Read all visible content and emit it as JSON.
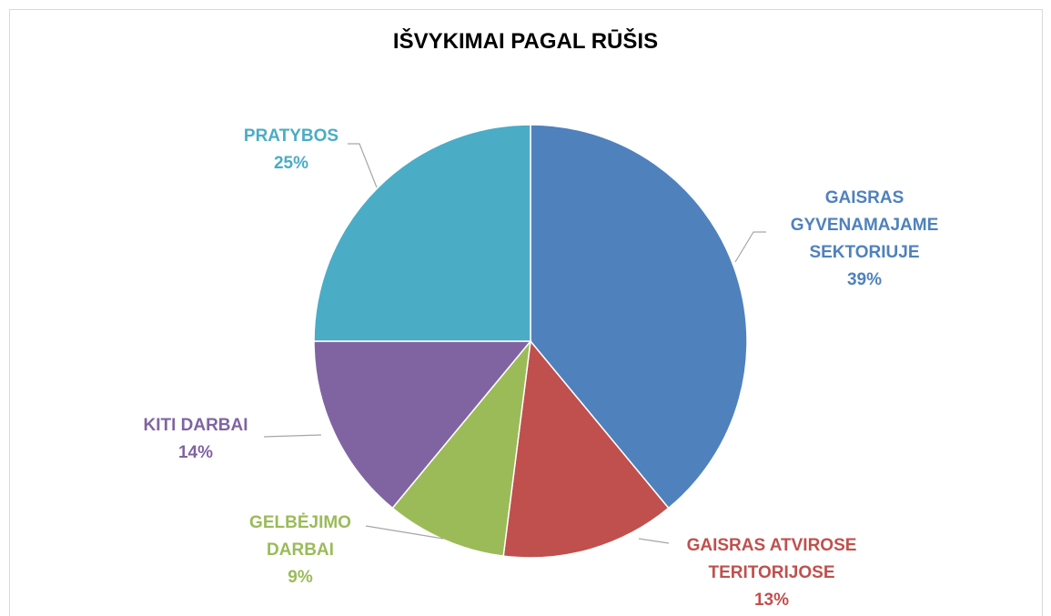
{
  "chart_data": {
    "type": "pie",
    "title": "IŠVYKIMAI PAGAL RŪŠIS",
    "categories": [
      "GAISRAS GYVENAMAJAME SEKTORIUJE",
      "GAISRAS ATVIROSE TERITORIJOSE",
      "GELBĖJIMO DARBAI",
      "KITI DARBAI",
      "PRATYBOS"
    ],
    "values": [
      39,
      13,
      9,
      14,
      25
    ],
    "value_labels": [
      "39%",
      "13%",
      "9%",
      "14%",
      "25%"
    ],
    "colors": [
      "#4f81bd",
      "#c0504d",
      "#9bbb59",
      "#8064a2",
      "#4bacc6"
    ]
  }
}
